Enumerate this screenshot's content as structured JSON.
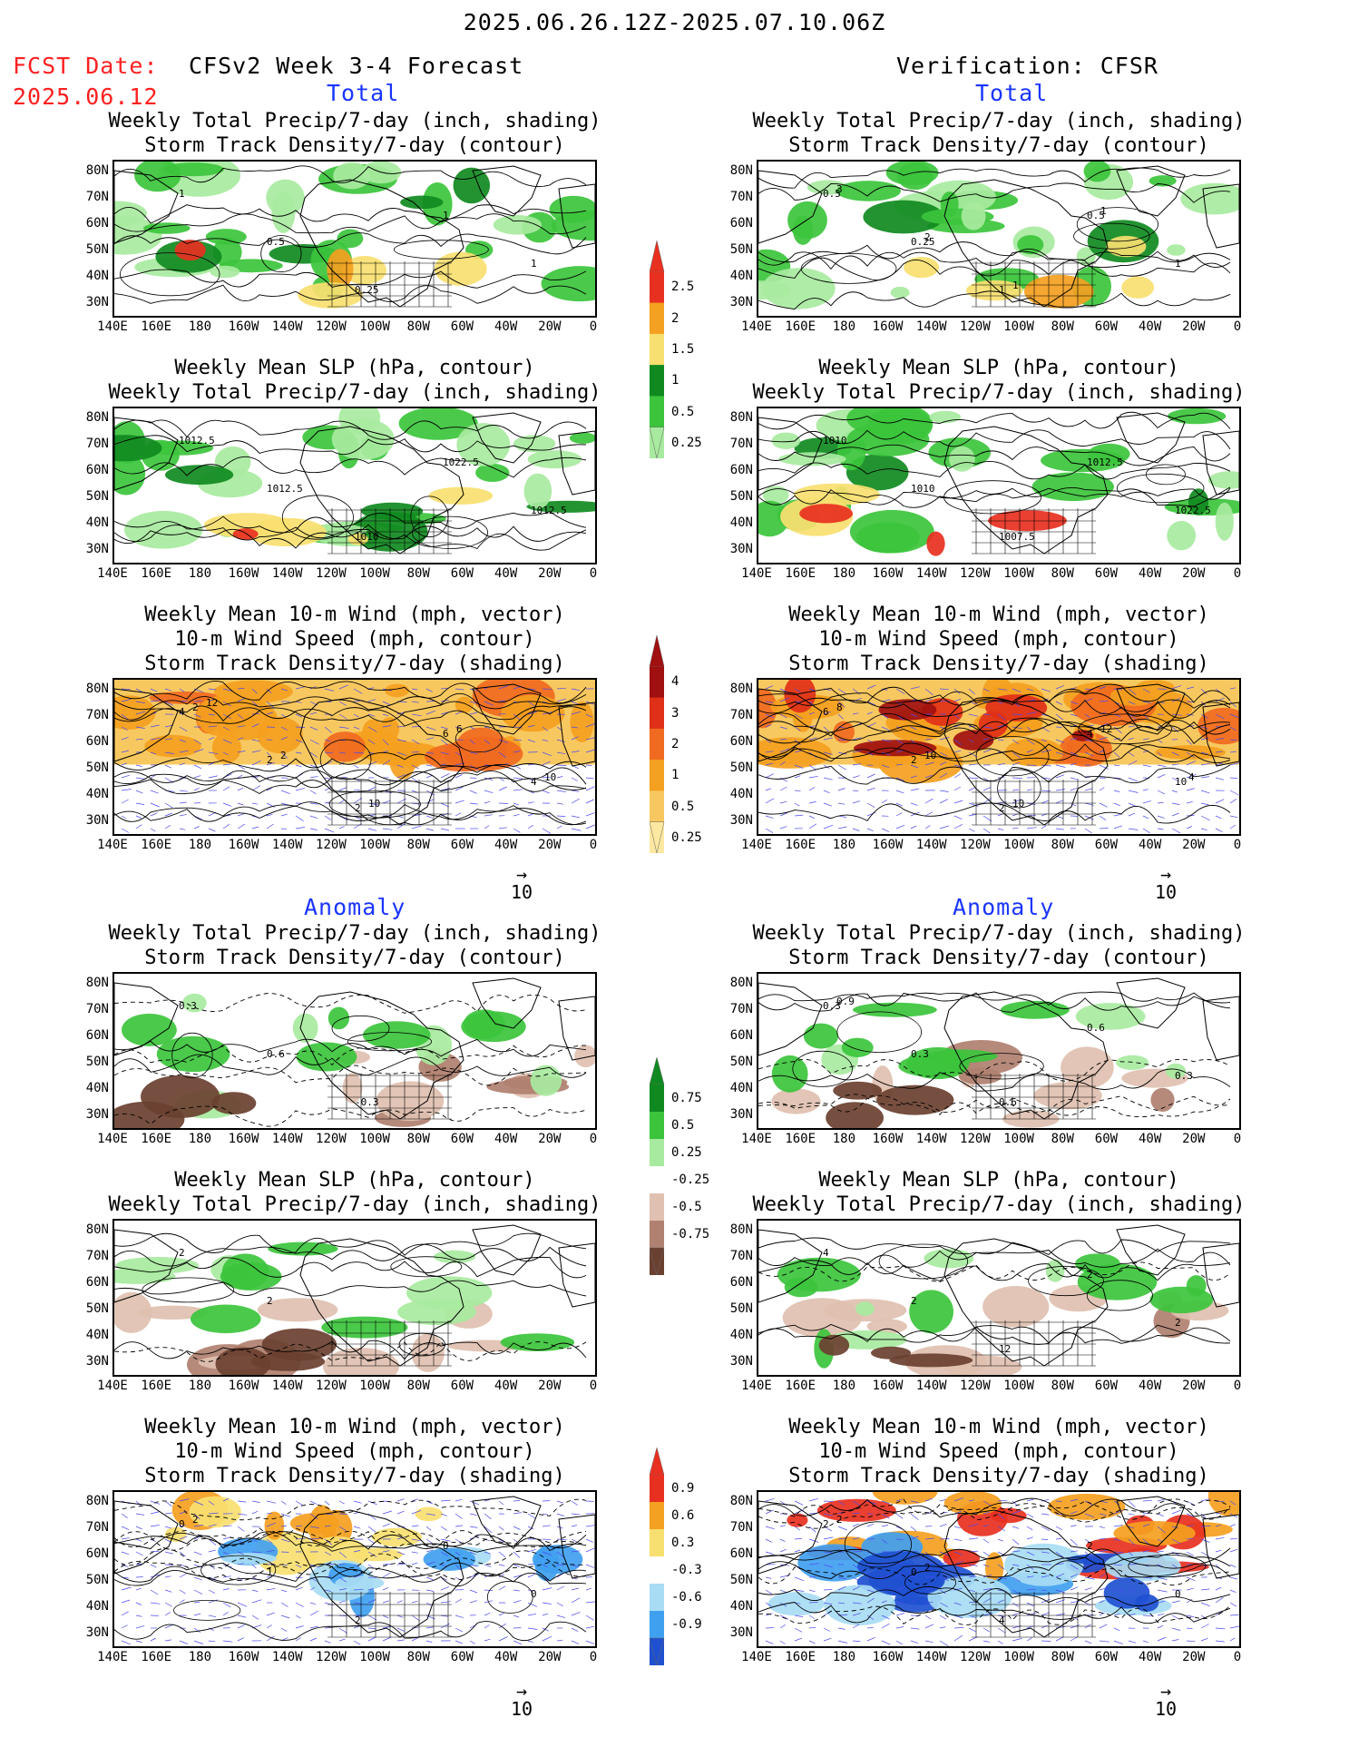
{
  "header": {
    "date_range": "2025.06.26.12Z-2025.07.10.06Z",
    "fcst_label": "FCST Date:",
    "fcst_date": "2025.06.12",
    "model_title": "CFSv2 Week 3-4 Forecast",
    "verification": "Verification: CFSR"
  },
  "section_labels": {
    "total": "Total",
    "anomaly": "Anomaly"
  },
  "titles": {
    "precip_storm": [
      "Weekly Total Precip/7-day (inch, shading)",
      "Storm Track Density/7-day (contour)"
    ],
    "slp_precip": [
      "Weekly Mean SLP (hPa, contour)",
      "Weekly Total Precip/7-day (inch, shading)"
    ],
    "wind_storm": [
      "Weekly Mean 10-m Wind (mph, vector)",
      "10-m Wind Speed (mph, contour)",
      "Storm Track Density/7-day (shading)"
    ]
  },
  "lat_labels": [
    "80N",
    "70N",
    "60N",
    "50N",
    "40N",
    "30N"
  ],
  "lon_labels": [
    "140E",
    "160E",
    "180",
    "160W",
    "140W",
    "120W",
    "100W",
    "80W",
    "60W",
    "40W",
    "20W",
    "0"
  ],
  "vector_ref": "10",
  "colorbars": {
    "precip_total": {
      "labels": [
        "2.5",
        "2",
        "1.5",
        "1",
        "0.5",
        "0.25"
      ],
      "colors": [
        "#e83020",
        "#f4a020",
        "#f8e070",
        "#108a20",
        "#3cc43c",
        "#a8eaa0"
      ]
    },
    "storm_total": {
      "labels": [
        "4",
        "3",
        "2",
        "1",
        "0.5",
        "0.25"
      ],
      "colors": [
        "#a01010",
        "#e03018",
        "#f06a20",
        "#f4a020",
        "#f8c860",
        "#fce8a0"
      ]
    },
    "precip_anom": {
      "labels": [
        "0.75",
        "0.5",
        "0.25",
        "-0.25",
        "-0.5",
        "-0.75"
      ],
      "colors": [
        "#108a20",
        "#3cc43c",
        "#a8eaa0",
        "#ffffff",
        "#e0c0b0",
        "#b08070",
        "#6a4030"
      ]
    },
    "storm_anom": {
      "labels": [
        "0.9",
        "0.6",
        "0.3",
        "-0.3",
        "-0.6",
        "-0.9"
      ],
      "colors": [
        "#e83020",
        "#f4a020",
        "#f8e070",
        "#ffffff",
        "#a8dcf4",
        "#40a0f0",
        "#1e50d0"
      ]
    }
  },
  "contour_labels": {
    "r1_fc": [
      "1",
      "0.5",
      "0.25",
      "1",
      "1"
    ],
    "r1_ob": [
      "0.5",
      "0.25",
      "1",
      "0.5",
      "1",
      "3",
      "2",
      "1",
      "1"
    ],
    "r2_fc": [
      "1012.5",
      "1012.5",
      "1010",
      "1022.5",
      "1012.5"
    ],
    "r2_ob": [
      "1010",
      "1010",
      "1007.5",
      "1012.5",
      "1022.5"
    ],
    "r3_fc": [
      "4",
      "2",
      "2",
      "6",
      "4",
      "2",
      "2",
      "10",
      "6",
      "10",
      "12"
    ],
    "r3_ob": [
      "6",
      "2",
      "2",
      "4",
      "10",
      "8",
      "10",
      "10",
      "12",
      "4"
    ],
    "r4_fc": [
      "0.3",
      "0.6",
      "-0.3"
    ],
    "r4_ob": [
      "0.3",
      "0.3",
      "0.6",
      "0.6",
      "0.3",
      "0.9"
    ],
    "r5_fc": [
      "2",
      "2"
    ],
    "r5_ob": [
      "4",
      "2",
      "12",
      "2",
      "2"
    ],
    "r6_fc": [
      "0",
      "1",
      "2",
      "0",
      "0",
      "2"
    ],
    "r6_ob": [
      "2",
      "0",
      "4",
      "2",
      "0",
      "2",
      "2"
    ]
  }
}
